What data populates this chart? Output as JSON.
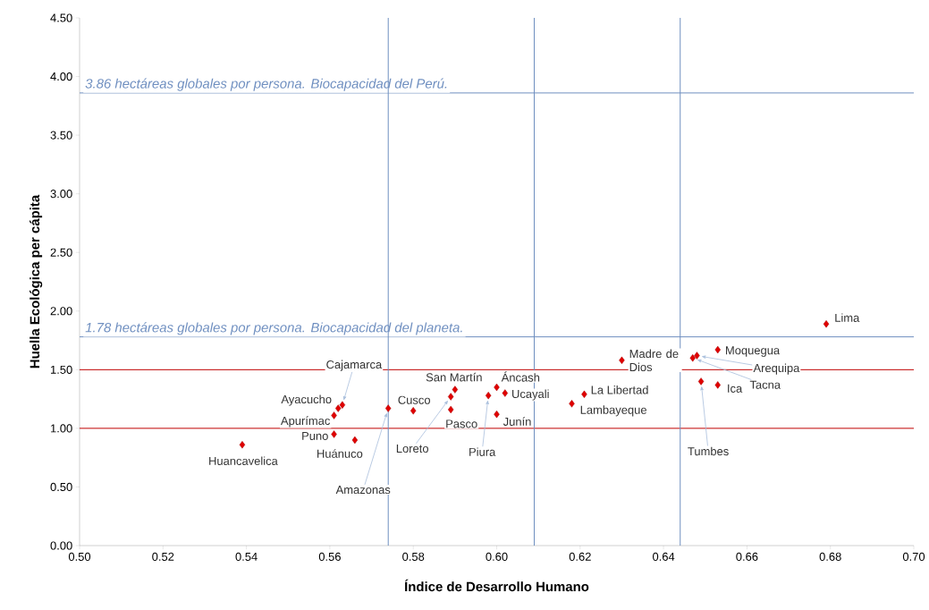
{
  "chart_data": {
    "type": "scatter",
    "xlabel": "Índice de Desarrollo Humano",
    "ylabel": "Huella Ecológica per cápita",
    "x": [
      0.539,
      0.562,
      0.563,
      0.561,
      0.561,
      0.566,
      0.574,
      0.58,
      0.59,
      0.589,
      0.589,
      0.598,
      0.6,
      0.602,
      0.6,
      0.618,
      0.621,
      0.63,
      0.648,
      0.647,
      0.653,
      0.653,
      0.649,
      0.679
    ],
    "values": [
      0.86,
      1.17,
      1.2,
      1.11,
      0.95,
      0.9,
      1.17,
      1.15,
      1.33,
      1.27,
      1.16,
      1.28,
      1.35,
      1.3,
      1.12,
      1.21,
      1.29,
      1.58,
      1.62,
      1.6,
      1.67,
      1.37,
      1.4,
      1.89
    ],
    "color": "#e00000",
    "marker": "diamond",
    "xlim": [
      0.5,
      0.7
    ],
    "ylim": [
      0,
      4.5
    ],
    "xticks": [
      {
        "value": 0.5,
        "label": "0.50"
      },
      {
        "value": 0.52,
        "label": "0.52"
      },
      {
        "value": 0.54,
        "label": "0.54"
      },
      {
        "value": 0.56,
        "label": "0.56"
      },
      {
        "value": 0.58,
        "label": "0.58"
      },
      {
        "value": 0.6,
        "label": "0.60"
      },
      {
        "value": 0.62,
        "label": "0.62"
      },
      {
        "value": 0.64,
        "label": "0.64"
      },
      {
        "value": 0.66,
        "label": "0.66"
      },
      {
        "value": 0.68,
        "label": "0.68"
      },
      {
        "value": 0.7,
        "label": "0.70"
      }
    ],
    "yticks": [
      {
        "value": 0,
        "label": "0.00"
      },
      {
        "value": 0.5,
        "label": "0.50"
      },
      {
        "value": 1,
        "label": "1.00"
      },
      {
        "value": 1.5,
        "label": "1.50"
      },
      {
        "value": 2,
        "label": "2.00"
      },
      {
        "value": 2.5,
        "label": "2.50"
      },
      {
        "value": 3,
        "label": "3.00"
      },
      {
        "value": 3.5,
        "label": "3.50"
      },
      {
        "value": 4,
        "label": "4.00"
      },
      {
        "value": 4.5,
        "label": "4.50"
      }
    ],
    "ref_lines": [
      {
        "axis": "y",
        "value": 3.86,
        "label": "3.86 hectáreas globales por persona. Biocapacidad del Perú.",
        "color": "#6f8fc0"
      },
      {
        "axis": "y",
        "value": 1.78,
        "label": "1.78 hectáreas globales por persona. Biocapacidad del planeta.",
        "color": "#6f8fc0"
      },
      {
        "axis": "y",
        "value": 1.5,
        "color": "#c00000"
      },
      {
        "axis": "y",
        "value": 1.0,
        "color": "#c00000"
      },
      {
        "axis": "x",
        "value": 0.574,
        "color": "#6f8fc0"
      },
      {
        "axis": "x",
        "value": 0.609,
        "color": "#6f8fc0"
      },
      {
        "axis": "x",
        "value": 0.644,
        "color": "#6f8fc0"
      }
    ],
    "annotations": [
      {
        "text": "Huancavelica",
        "x": 0.539,
        "y": 0.86
      },
      {
        "text": "Ayacucho",
        "x": 0.562,
        "y": 1.17
      },
      {
        "text": "Cajamarca",
        "x": 0.563,
        "y": 1.2
      },
      {
        "text": "Apurímac",
        "x": 0.561,
        "y": 1.11
      },
      {
        "text": "Puno",
        "x": 0.561,
        "y": 0.95
      },
      {
        "text": "Huánuco",
        "x": 0.566,
        "y": 0.9
      },
      {
        "text": "Amazonas",
        "x": 0.574,
        "y": 1.17
      },
      {
        "text": "Cusco",
        "x": 0.58,
        "y": 1.15
      },
      {
        "text": "San Martín",
        "x": 0.59,
        "y": 1.33
      },
      {
        "text": "Loreto",
        "x": 0.589,
        "y": 1.27
      },
      {
        "text": "Pasco",
        "x": 0.589,
        "y": 1.16
      },
      {
        "text": "Piura",
        "x": 0.598,
        "y": 1.28
      },
      {
        "text": "Áncash",
        "x": 0.6,
        "y": 1.35
      },
      {
        "text": "Ucayali",
        "x": 0.602,
        "y": 1.3
      },
      {
        "text": "Junín",
        "x": 0.6,
        "y": 1.12
      },
      {
        "text": "Lambayeque",
        "x": 0.618,
        "y": 1.21
      },
      {
        "text": "La Libertad",
        "x": 0.621,
        "y": 1.29
      },
      {
        "text": "Madre de Dios",
        "x": 0.63,
        "y": 1.58
      },
      {
        "text": "Arequipa",
        "x": 0.648,
        "y": 1.62
      },
      {
        "text": "Tacna",
        "x": 0.647,
        "y": 1.6
      },
      {
        "text": "Moquegua",
        "x": 0.653,
        "y": 1.67
      },
      {
        "text": "Ica",
        "x": 0.653,
        "y": 1.37
      },
      {
        "text": "Tumbes",
        "x": 0.649,
        "y": 1.4
      },
      {
        "text": "Lima",
        "x": 0.679,
        "y": 1.89
      }
    ]
  }
}
